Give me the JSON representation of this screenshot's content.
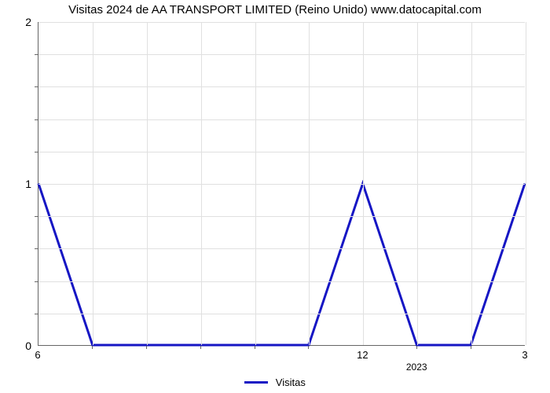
{
  "chart": {
    "type": "line",
    "title": "Visitas 2024 de AA TRANSPORT LIMITED (Reino Unido) www.datocapital.com",
    "title_fontsize": 15,
    "background_color": "#ffffff",
    "grid_color": "#e0e0e0",
    "axis_color": "#666666",
    "text_color": "#000000",
    "x": {
      "n_points": 10,
      "tick_labels": {
        "0": "6",
        "6": "12",
        "9": "3"
      },
      "minor_ticks_at": [
        1,
        2,
        3,
        4,
        5,
        7,
        8
      ],
      "sublabel": {
        "at": 7,
        "text": "2023"
      }
    },
    "y": {
      "min": 0,
      "max": 2,
      "tick_step": 1,
      "tick_labels": [
        "0",
        "1",
        "2"
      ],
      "minor_ticks_between": 4
    },
    "series": [
      {
        "name": "Visitas",
        "color": "#1616c4",
        "line_width": 3,
        "y_values": [
          1,
          0,
          0,
          0,
          0,
          0,
          1,
          0,
          0,
          1
        ]
      }
    ],
    "legend": {
      "label": "Visitas"
    }
  }
}
